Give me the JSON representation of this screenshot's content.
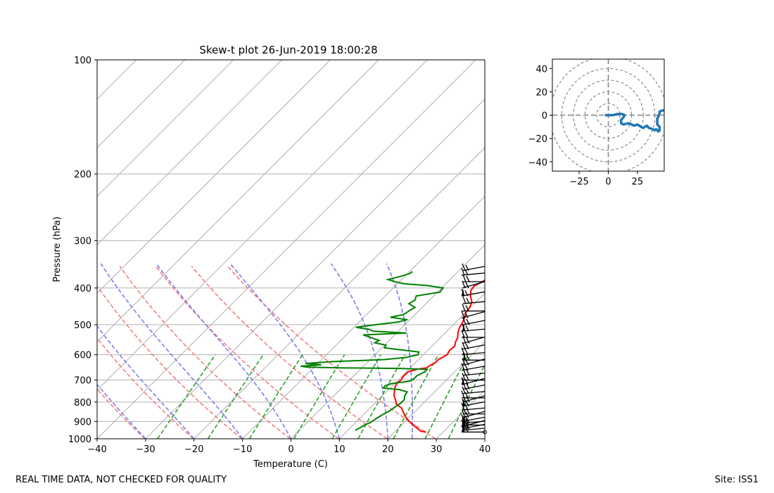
{
  "footer": {
    "left": "REAL TIME DATA, NOT CHECKED FOR QUALITY",
    "right": "Site: ISS1"
  },
  "colors": {
    "temperature": "#ff0000",
    "dewpoint": "#008000",
    "dry_adiabat": "#f08080",
    "moist_adiabat": "#7b7bf0",
    "mixing_ratio": "#2ca02c",
    "isotherm": "#b0b0b0",
    "hodograph": "#1f77b4"
  },
  "chart_data": [
    {
      "type": "skewt",
      "title": "Skew-t plot 26-Jun-2019 18:00:28",
      "xlabel": "Temperature (C)",
      "ylabel": "Pressure (hPa)",
      "xlim": [
        -40,
        40
      ],
      "ylim": [
        1000,
        100
      ],
      "x_ticks": [
        "−40",
        "−30",
        "−20",
        "−10",
        "0",
        "10",
        "20",
        "30",
        "40"
      ],
      "x_tick_values": [
        -40,
        -30,
        -20,
        -10,
        0,
        10,
        20,
        30,
        40
      ],
      "y_ticks": [
        "100",
        "200",
        "300",
        "400",
        "500",
        "600",
        "700",
        "800",
        "900",
        "1000"
      ],
      "y_tick_values": [
        100,
        200,
        300,
        400,
        500,
        600,
        700,
        800,
        900,
        1000
      ],
      "isotherms": [
        -150,
        -140,
        -130,
        -120,
        -110,
        -100,
        -90,
        -80,
        -70,
        -60,
        -50,
        -40,
        -30,
        -20,
        -10,
        0,
        10,
        20,
        30,
        40
      ],
      "dry_adiabats_theta_k": [
        233,
        243,
        253,
        263,
        273,
        283,
        293,
        303
      ],
      "moist_adiabats_start_c": [
        -30,
        -20,
        -10,
        0,
        10,
        20,
        25
      ],
      "mixing_ratio_lines_gkg": [
        0.4,
        1,
        2,
        4,
        7,
        10,
        16,
        24,
        32
      ],
      "temperature": [
        {
          "p": 960,
          "t": 26.5
        },
        {
          "p": 955,
          "t": 25.2
        },
        {
          "p": 930,
          "t": 23.2
        },
        {
          "p": 900,
          "t": 20.8
        },
        {
          "p": 870,
          "t": 18.8
        },
        {
          "p": 830,
          "t": 16.5
        },
        {
          "p": 810,
          "t": 14.6
        },
        {
          "p": 790,
          "t": 13.6
        },
        {
          "p": 770,
          "t": 12.4
        },
        {
          "p": 745,
          "t": 11.4
        },
        {
          "p": 730,
          "t": 10.8
        },
        {
          "p": 712,
          "t": 10.4
        },
        {
          "p": 700,
          "t": 10.6
        },
        {
          "p": 685,
          "t": 10.3
        },
        {
          "p": 665,
          "t": 10.4
        },
        {
          "p": 655,
          "t": 11.8
        },
        {
          "p": 650,
          "t": 13.4
        },
        {
          "p": 640,
          "t": 13.6
        },
        {
          "p": 630,
          "t": 14.1
        },
        {
          "p": 618,
          "t": 14.1
        },
        {
          "p": 600,
          "t": 14.9
        },
        {
          "p": 585,
          "t": 14.5
        },
        {
          "p": 570,
          "t": 14.7
        },
        {
          "p": 555,
          "t": 14.0
        },
        {
          "p": 540,
          "t": 13.5
        },
        {
          "p": 525,
          "t": 12.6
        },
        {
          "p": 510,
          "t": 11.9
        },
        {
          "p": 495,
          "t": 11.5
        },
        {
          "p": 480,
          "t": 10.9
        },
        {
          "p": 465,
          "t": 10.1
        },
        {
          "p": 450,
          "t": 9.8
        },
        {
          "p": 435,
          "t": 9.1
        },
        {
          "p": 420,
          "t": 7.6
        },
        {
          "p": 405,
          "t": 6.5
        },
        {
          "p": 395,
          "t": 6.3
        },
        {
          "p": 388,
          "t": 6.9
        },
        {
          "p": 380,
          "t": 7.4
        },
        {
          "p": 370,
          "t": 7.3
        },
        {
          "p": 362,
          "t": 6.3
        }
      ],
      "dewpoint": [
        {
          "p": 950,
          "t": 11.5
        },
        {
          "p": 935,
          "t": 12.0
        },
        {
          "p": 920,
          "t": 12.3
        },
        {
          "p": 905,
          "t": 13.1
        },
        {
          "p": 885,
          "t": 13.4
        },
        {
          "p": 865,
          "t": 13.9
        },
        {
          "p": 845,
          "t": 14.6
        },
        {
          "p": 825,
          "t": 14.9
        },
        {
          "p": 805,
          "t": 15.3
        },
        {
          "p": 788,
          "t": 15.3
        },
        {
          "p": 770,
          "t": 14.6
        },
        {
          "p": 752,
          "t": 14.3
        },
        {
          "p": 742,
          "t": 12.3
        },
        {
          "p": 735,
          "t": 8.6
        },
        {
          "p": 725,
          "t": 8.5
        },
        {
          "p": 715,
          "t": 9.4
        },
        {
          "p": 705,
          "t": 12.5
        },
        {
          "p": 695,
          "t": 13.0
        },
        {
          "p": 682,
          "t": 13.0
        },
        {
          "p": 666,
          "t": 13.8
        },
        {
          "p": 656,
          "t": 13.8
        },
        {
          "p": 652,
          "t": 8.0
        },
        {
          "p": 650,
          "t": -4.0
        },
        {
          "p": 647,
          "t": -11.5
        },
        {
          "p": 643,
          "t": -13.0
        },
        {
          "p": 638,
          "t": -9.0
        },
        {
          "p": 633,
          "t": -12.5
        },
        {
          "p": 626,
          "t": -7.5
        },
        {
          "p": 618,
          "t": 3.0
        },
        {
          "p": 610,
          "t": 7.0
        },
        {
          "p": 600,
          "t": 8.9
        },
        {
          "p": 590,
          "t": 8.5
        },
        {
          "p": 580,
          "t": 3.0
        },
        {
          "p": 575,
          "t": 0.5
        },
        {
          "p": 566,
          "t": 0.3
        },
        {
          "p": 558,
          "t": -2.5
        },
        {
          "p": 550,
          "t": -2.1
        },
        {
          "p": 540,
          "t": -4.5
        },
        {
          "p": 532,
          "t": -6.5
        },
        {
          "p": 526,
          "t": 2.0
        },
        {
          "p": 520,
          "t": -5.2
        },
        {
          "p": 514,
          "t": -6.5
        },
        {
          "p": 508,
          "t": -9.6
        },
        {
          "p": 500,
          "t": -6.0
        },
        {
          "p": 492,
          "t": -2.0
        },
        {
          "p": 485,
          "t": -0.5
        },
        {
          "p": 478,
          "t": -4.5
        },
        {
          "p": 470,
          "t": -2.4
        },
        {
          "p": 460,
          "t": -2.0
        },
        {
          "p": 450,
          "t": -1.5
        },
        {
          "p": 440,
          "t": -3.5
        },
        {
          "p": 430,
          "t": -3.0
        },
        {
          "p": 420,
          "t": -3.6
        },
        {
          "p": 410,
          "t": 0.5
        },
        {
          "p": 400,
          "t": 0.3
        },
        {
          "p": 394,
          "t": -3.5
        },
        {
          "p": 390,
          "t": -8.5
        },
        {
          "p": 385,
          "t": -11.0
        },
        {
          "p": 380,
          "t": -12.8
        },
        {
          "p": 372,
          "t": -10.7
        },
        {
          "p": 366,
          "t": -9.5
        },
        {
          "p": 362,
          "t": -9.4
        }
      ],
      "wind_barb_pressures": [
        960,
        950,
        940,
        930,
        920,
        910,
        900,
        880,
        860,
        840,
        820,
        800,
        780,
        760,
        740,
        720,
        700,
        680,
        660,
        640,
        620,
        600,
        580,
        560,
        540,
        520,
        500,
        480,
        460,
        440,
        420,
        400,
        385,
        370,
        360
      ]
    },
    {
      "type": "hodograph",
      "x_ticks": [
        "−25",
        "0",
        "25"
      ],
      "x_tick_values": [
        -25,
        0,
        25
      ],
      "y_ticks": [
        "40",
        "20",
        "0",
        "−20",
        "−40"
      ],
      "y_tick_values": [
        40,
        20,
        0,
        -20,
        -40
      ],
      "xlim": [
        -48,
        48
      ],
      "ylim": [
        -48,
        48
      ],
      "ring_radii": [
        10,
        20,
        30,
        40,
        50
      ],
      "u": [
        -3,
        1,
        4,
        8,
        12,
        14,
        13,
        11,
        11,
        13,
        17,
        20,
        22,
        25,
        28,
        30,
        33,
        35,
        38,
        40,
        41,
        43,
        44,
        44,
        42,
        42,
        43,
        44,
        44,
        46,
        48
      ],
      "v": [
        0,
        0,
        0,
        1,
        1,
        0,
        -2,
        -4,
        -7,
        -8,
        -7,
        -8,
        -9,
        -8,
        -10,
        -11,
        -9,
        -11,
        -12,
        -13,
        -12,
        -14,
        -13,
        -10,
        -8,
        -3,
        -1,
        1,
        3,
        4,
        4
      ]
    }
  ]
}
